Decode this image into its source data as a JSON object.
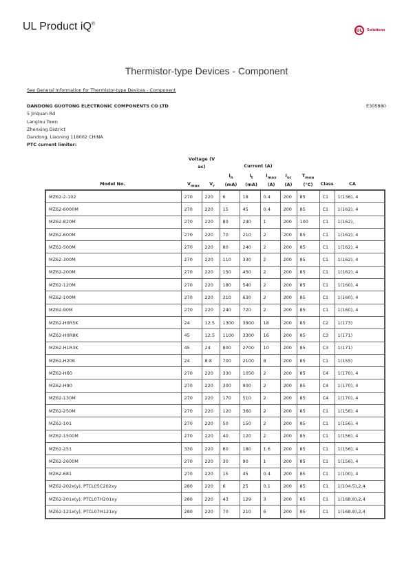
{
  "header": {
    "brand": "UL Product iQ",
    "brand_mark": "®",
    "logo_text": "UL",
    "logo_sub": "Solutions"
  },
  "page_title": "Thermistor-type Devices - Component",
  "general_info_link": "See General Information for Thermistor-type Devices - Component",
  "company": {
    "name": "DANDONG GUOTONG ELECTRONIC COMPONENTS CO LTD",
    "file_number": "E305880",
    "address": [
      "5 Jinquan Rd",
      "Langtou Town",
      "Zhenxing District",
      "Dandong, Liaoning 118002 CHINA"
    ]
  },
  "section_label": "PTC current limiter:",
  "table": {
    "group_voltage": "Voltage (V ac)",
    "group_current": "Current (A)",
    "columns": {
      "model": "Model No.",
      "vmax": {
        "base": "V",
        "sub": "max"
      },
      "vr": {
        "base": "V",
        "sub": "r"
      },
      "ih": {
        "base": "I",
        "sub": "h",
        "unit": "(mA)"
      },
      "it": {
        "base": "I",
        "sub": "t",
        "unit": "(mA)"
      },
      "imax": {
        "base": "I",
        "sub": "max",
        "unit": "(A)"
      },
      "isc": {
        "base": "I",
        "sub": "sc",
        "unit": "(A)"
      },
      "tmoa": {
        "base": "T",
        "sub": "moa",
        "unit": "(°C)"
      },
      "class": "Class",
      "ca": "CA"
    },
    "rows": [
      [
        "MZ62-2-102",
        "270",
        "220",
        "6",
        "18",
        "0.4",
        "200",
        "85",
        "C1",
        "1(136), 4"
      ],
      [
        "MZ62-6000M",
        "270",
        "220",
        "15",
        "45",
        "0.4",
        "200",
        "85",
        "C1",
        "1(162), 4"
      ],
      [
        "MZ62-820M",
        "270",
        "220",
        "80",
        "240",
        "1",
        "200",
        "100",
        "C1",
        "1(162),"
      ],
      [
        "MZ62-600M",
        "270",
        "220",
        "70",
        "210",
        "2",
        "200",
        "85",
        "C1",
        "1(162), 4"
      ],
      [
        "MZ62-500M",
        "270",
        "220",
        "80",
        "240",
        "2",
        "200",
        "85",
        "C1",
        "1(162), 4"
      ],
      [
        "MZ62-300M",
        "270",
        "220",
        "110",
        "330",
        "2",
        "200",
        "85",
        "C1",
        "1(162), 4"
      ],
      [
        "MZ62-200M",
        "270",
        "220",
        "150",
        "450",
        "2",
        "200",
        "85",
        "C1",
        "1(162), 4"
      ],
      [
        "MZ62-120M",
        "270",
        "220",
        "180",
        "540",
        "2",
        "200",
        "85",
        "C1",
        "1(160), 4"
      ],
      [
        "MZ62-100M",
        "270",
        "220",
        "210",
        "630",
        "2",
        "200",
        "85",
        "C1",
        "1(160), 4"
      ],
      [
        "MZ62-90M",
        "270",
        "220",
        "240",
        "720",
        "2",
        "200",
        "85",
        "C1",
        "1(160), 4"
      ],
      [
        "MZ62-H0R5K",
        "24",
        "12.5",
        "1300",
        "3900",
        "18",
        "200",
        "85",
        "C2",
        "1(173)"
      ],
      [
        "MZ62-H0R8K",
        "45",
        "12.5",
        "1100",
        "3300",
        "16",
        "200",
        "85",
        "C3",
        "1(171)"
      ],
      [
        "MZ62-H1R3K",
        "45",
        "24",
        "800",
        "2700",
        "10",
        "200",
        "85",
        "C3",
        "1(171)"
      ],
      [
        "MZ62-H20K",
        "24",
        "8.8",
        "700",
        "2100",
        "8",
        "200",
        "85",
        "C1",
        "1(155)"
      ],
      [
        "MZ62-H60",
        "270",
        "220",
        "330",
        "1050",
        "2",
        "200",
        "85",
        "C4",
        "1(170), 4"
      ],
      [
        "MZ62-H90",
        "270",
        "220",
        "300",
        "900",
        "2",
        "200",
        "85",
        "C4",
        "1(170), 4"
      ],
      [
        "MZ62-130M",
        "270",
        "220",
        "170",
        "510",
        "2",
        "200",
        "85",
        "C4",
        "1(170), 4"
      ],
      [
        "MZ62-250M",
        "270",
        "220",
        "120",
        "360",
        "2",
        "200",
        "85",
        "C1",
        "1(156), 4"
      ],
      [
        "MZ62-101",
        "270",
        "220",
        "50",
        "150",
        "2",
        "200",
        "85",
        "C1",
        "1(156), 4"
      ],
      [
        "MZ62-1500M",
        "270",
        "220",
        "40",
        "120",
        "2",
        "200",
        "85",
        "C1",
        "1(156), 4"
      ],
      [
        "MZ62-251",
        "330",
        "220",
        "60",
        "180",
        "1.6",
        "200",
        "85",
        "C1",
        "1(156), 4"
      ],
      [
        "MZ62-2600M",
        "270",
        "220",
        "30",
        "90",
        "1",
        "200",
        "85",
        "C1",
        "1(156), 4"
      ],
      [
        "MZ62-681",
        "270",
        "220",
        "15",
        "45",
        "0.4",
        "200",
        "85",
        "C1",
        "1(100), 4"
      ],
      [
        "MZ62-202x(y), PTCL05C202xy",
        "280",
        "220",
        "6",
        "25",
        "0.1",
        "200",
        "85",
        "C1",
        "1(104.5),2,4"
      ],
      [
        "MZ62-201x(y), PTCL07H201xy",
        "280",
        "220",
        "43",
        "129",
        "3",
        "200",
        "85",
        "C1",
        "1(168.8),2,4"
      ],
      [
        "MZ62-121x(y), PTCL07H121xy",
        "280",
        "220",
        "70",
        "210",
        "6",
        "200",
        "85",
        "C1",
        "1(168.8),2,4"
      ]
    ]
  },
  "colors": {
    "brand_red": "#c8102e",
    "border": "#555555"
  }
}
